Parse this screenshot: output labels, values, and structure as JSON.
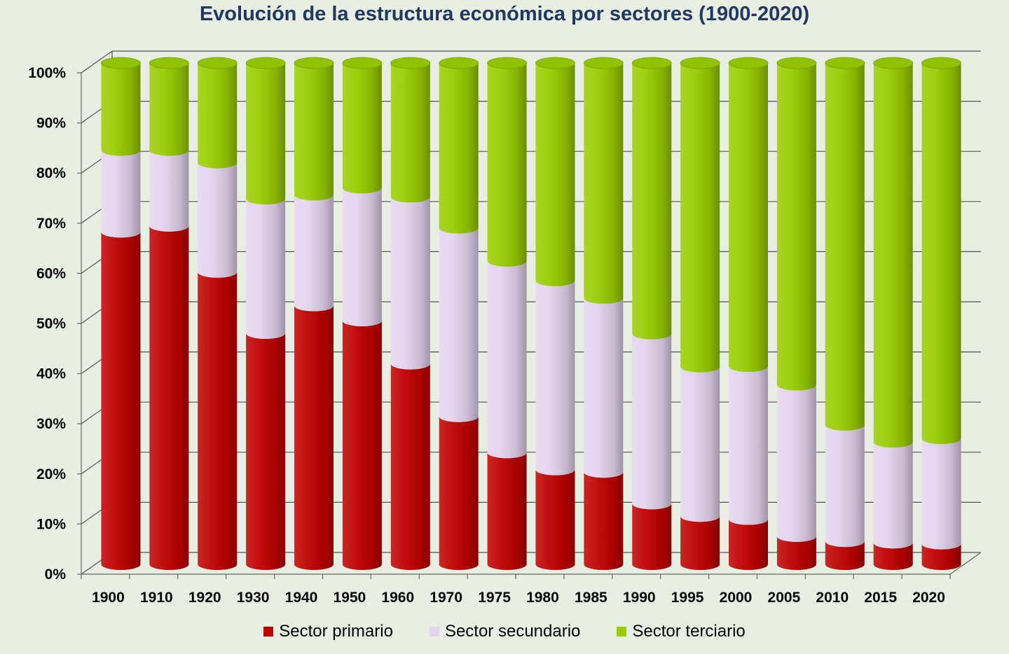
{
  "chart_data": {
    "type": "bar",
    "stacked": true,
    "title": "Evolución de la estructura económica por sectores (1900-2020)",
    "categories": [
      "1900",
      "1910",
      "1920",
      "1930",
      "1940",
      "1950",
      "1960",
      "1970",
      "1975",
      "1980",
      "1985",
      "1990",
      "1995",
      "2000",
      "2005",
      "2010",
      "2015",
      "2020"
    ],
    "series": [
      {
        "name": "Sector primario",
        "color": "#c00000",
        "values": [
          66.3,
          67.5,
          58.3,
          46.1,
          51.6,
          48.6,
          40.0,
          29.5,
          22.3,
          18.9,
          18.4,
          12.1,
          9.6,
          9.0,
          5.6,
          4.6,
          4.3,
          4.1
        ]
      },
      {
        "name": "Sector secundario",
        "color": "#e4d4ee",
        "values": [
          16.3,
          15.1,
          21.8,
          26.8,
          22.1,
          26.5,
          33.3,
          37.6,
          38.2,
          37.7,
          34.7,
          33.9,
          29.8,
          30.5,
          30.2,
          23.2,
          20.1,
          21.0
        ]
      },
      {
        "name": "Sector terciario",
        "color": "#99cc00",
        "values": [
          17.4,
          17.4,
          19.9,
          27.1,
          26.3,
          24.9,
          26.7,
          32.9,
          39.5,
          43.4,
          46.9,
          54.0,
          60.6,
          60.5,
          64.2,
          72.2,
          75.6,
          74.9
        ]
      }
    ],
    "ylim": [
      0,
      100
    ],
    "yticks": [
      "0%",
      "10%",
      "20%",
      "30%",
      "40%",
      "50%",
      "60%",
      "70%",
      "80%",
      "90%",
      "100%"
    ],
    "grid": true,
    "legend_position": "bottom"
  }
}
